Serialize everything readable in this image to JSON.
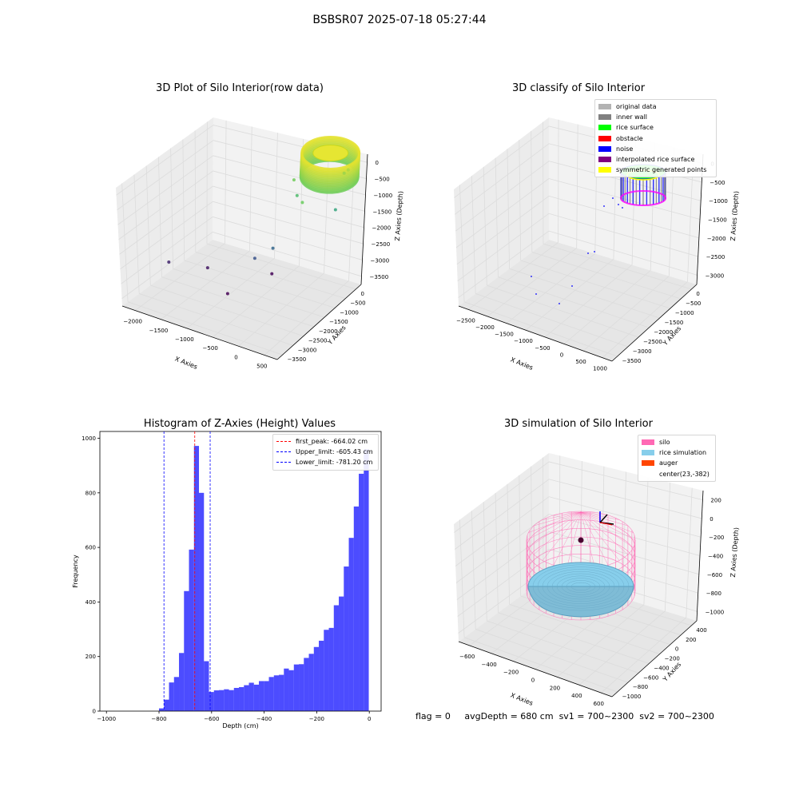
{
  "suptitle": "BSBSR07 2025-07-18 05:27:44",
  "footer": {
    "flag": "flag = 0",
    "avg_depth": "avgDepth = 680 cm",
    "sv1": "sv1 = 700~2300",
    "sv2": "sv2 = 700~2300"
  },
  "chart_data": [
    {
      "type": "scatter",
      "title": "3D Plot of Silo Interior(row data)",
      "xlabel": "X Axies",
      "ylabel": "Y Axies",
      "zlabel": "Z Axies (Depth)",
      "x_ticks": [
        "−2000",
        "−1500",
        "−1000",
        "−500",
        "0",
        "500"
      ],
      "y_ticks": [
        "0",
        "−500",
        "−1000",
        "−1500",
        "−2000",
        "−2500",
        "−3000",
        "−3500"
      ],
      "z_ticks": [
        "0",
        "−500",
        "−1000",
        "−1500",
        "−2000",
        "−2500",
        "−3000",
        "−3500"
      ],
      "xlim": [
        -2150,
        550
      ],
      "ylim": [
        -3800,
        250
      ],
      "zlim": [
        -3700,
        150
      ],
      "colormap": "viridis",
      "points": [
        {
          "x": 250,
          "y": 0,
          "z": -450
        },
        {
          "x": 300,
          "y": 50,
          "z": -350
        },
        {
          "x": 0,
          "y": -1300,
          "z": -750
        },
        {
          "x": -300,
          "y": -700,
          "z": -1050
        },
        {
          "x": -400,
          "y": -600,
          "z": -700
        },
        {
          "x": 200,
          "y": -200,
          "z": -1450
        },
        {
          "x": -500,
          "y": -1200,
          "z": -2450
        },
        {
          "x": -700,
          "y": -1500,
          "z": -2700
        },
        {
          "x": -2000,
          "y": -2000,
          "z": -3300
        },
        {
          "x": -1500,
          "y": -1500,
          "z": -3450
        },
        {
          "x": -700,
          "y": -600,
          "z": -3650
        },
        {
          "x": -1000,
          "y": -1900,
          "z": -3700
        }
      ],
      "rice_ring": {
        "center_x": 0,
        "center_y": 0,
        "radius": 560,
        "z_top": 0,
        "z_bottom": -700
      }
    },
    {
      "type": "scatter",
      "title": "3D classify of Silo Interior",
      "xlabel": "X Axies",
      "ylabel": "Y Axies",
      "zlabel": "Z Axies (Depth)",
      "x_ticks": [
        "−2500",
        "−2000",
        "−1500",
        "−1000",
        "−500",
        "0",
        "500",
        "1000"
      ],
      "y_ticks": [
        "0",
        "−500",
        "−1000",
        "−1500",
        "−2000",
        "−2500",
        "−3000",
        "−3500"
      ],
      "z_ticks": [
        "0",
        "−500",
        "−1000",
        "−1500",
        "−2000",
        "−2500",
        "−3000"
      ],
      "legend": [
        {
          "label": "original data",
          "color": "#b3b3b3"
        },
        {
          "label": "inner wall",
          "color": "#808080"
        },
        {
          "label": "rice surface",
          "color": "#00ff00"
        },
        {
          "label": "obstacle",
          "color": "#ff0000"
        },
        {
          "label": "noise",
          "color": "#0000ff"
        },
        {
          "label": "interpolated rice surface",
          "color": "#800080"
        },
        {
          "label": "symmetric generated points",
          "color": "#ffff00"
        }
      ]
    },
    {
      "type": "bar",
      "title": "Histogram of Z-Axies (Height) Values",
      "xlabel": "Depth (cm)",
      "ylabel": "Frequency",
      "xlim": [
        -1025,
        45
      ],
      "ylim": [
        0,
        1025
      ],
      "x_ticks": [
        -1000,
        -800,
        -600,
        -400,
        -200,
        0
      ],
      "y_ticks": [
        0,
        200,
        400,
        600,
        800,
        1000
      ],
      "bar_color": "#0000ff",
      "bins": [
        {
          "start": -800,
          "end": -781,
          "count": 10
        },
        {
          "start": -781,
          "end": -762,
          "count": 42
        },
        {
          "start": -762,
          "end": -743,
          "count": 105
        },
        {
          "start": -743,
          "end": -724,
          "count": 125
        },
        {
          "start": -724,
          "end": -705,
          "count": 213
        },
        {
          "start": -705,
          "end": -686,
          "count": 440
        },
        {
          "start": -686,
          "end": -667,
          "count": 592
        },
        {
          "start": -667,
          "end": -648,
          "count": 972
        },
        {
          "start": -648,
          "end": -629,
          "count": 800
        },
        {
          "start": -629,
          "end": -610,
          "count": 183
        },
        {
          "start": -610,
          "end": -591,
          "count": 70
        },
        {
          "start": -591,
          "end": -572,
          "count": 76
        },
        {
          "start": -572,
          "end": -553,
          "count": 77
        },
        {
          "start": -553,
          "end": -534,
          "count": 80
        },
        {
          "start": -534,
          "end": -515,
          "count": 77
        },
        {
          "start": -515,
          "end": -496,
          "count": 85
        },
        {
          "start": -496,
          "end": -477,
          "count": 88
        },
        {
          "start": -477,
          "end": -458,
          "count": 95
        },
        {
          "start": -458,
          "end": -439,
          "count": 104
        },
        {
          "start": -439,
          "end": -420,
          "count": 97
        },
        {
          "start": -420,
          "end": -401,
          "count": 110
        },
        {
          "start": -401,
          "end": -382,
          "count": 110
        },
        {
          "start": -382,
          "end": -363,
          "count": 125
        },
        {
          "start": -363,
          "end": -344,
          "count": 131
        },
        {
          "start": -344,
          "end": -325,
          "count": 133
        },
        {
          "start": -325,
          "end": -306,
          "count": 156
        },
        {
          "start": -306,
          "end": -287,
          "count": 150
        },
        {
          "start": -287,
          "end": -268,
          "count": 171
        },
        {
          "start": -268,
          "end": -249,
          "count": 172
        },
        {
          "start": -249,
          "end": -230,
          "count": 195
        },
        {
          "start": -230,
          "end": -211,
          "count": 210
        },
        {
          "start": -211,
          "end": -192,
          "count": 235
        },
        {
          "start": -192,
          "end": -173,
          "count": 258
        },
        {
          "start": -173,
          "end": -154,
          "count": 298
        },
        {
          "start": -154,
          "end": -135,
          "count": 305
        },
        {
          "start": -135,
          "end": -116,
          "count": 388
        },
        {
          "start": -116,
          "end": -97,
          "count": 420
        },
        {
          "start": -97,
          "end": -78,
          "count": 530
        },
        {
          "start": -78,
          "end": -59,
          "count": 635
        },
        {
          "start": -59,
          "end": -40,
          "count": 750
        },
        {
          "start": -40,
          "end": -21,
          "count": 870
        },
        {
          "start": -21,
          "end": -2,
          "count": 960
        }
      ],
      "lines": [
        {
          "label": "first_peak: -664.02 cm",
          "x": -664.02,
          "color": "#ff0000"
        },
        {
          "label": "Upper_limit: -605.43 cm",
          "x": -605.43,
          "color": "#0000ff"
        },
        {
          "label": "Lower_limit: -781.20 cm",
          "x": -781.2,
          "color": "#0000ff"
        }
      ]
    },
    {
      "type": "scatter",
      "title": "3D simulation of Silo Interior",
      "xlabel": "X Axies",
      "ylabel": "Y Axies",
      "zlabel": "Z Axies (Depth)",
      "x_ticks": [
        "−600",
        "−400",
        "−200",
        "0",
        "200",
        "400",
        "600"
      ],
      "y_ticks": [
        "400",
        "200",
        "0",
        "−200",
        "−400",
        "−600",
        "−800",
        "−1000"
      ],
      "z_ticks": [
        "200",
        "0",
        "−200",
        "−400",
        "−600",
        "−800",
        "−1000"
      ],
      "legend": [
        {
          "label": "silo",
          "color": "#ff69b4"
        },
        {
          "label": "rice simulation",
          "color": "#87ceeb"
        },
        {
          "label": "auger",
          "color": "#ff4500"
        },
        {
          "label": "center(23,-382)",
          "color": ""
        }
      ]
    }
  ]
}
